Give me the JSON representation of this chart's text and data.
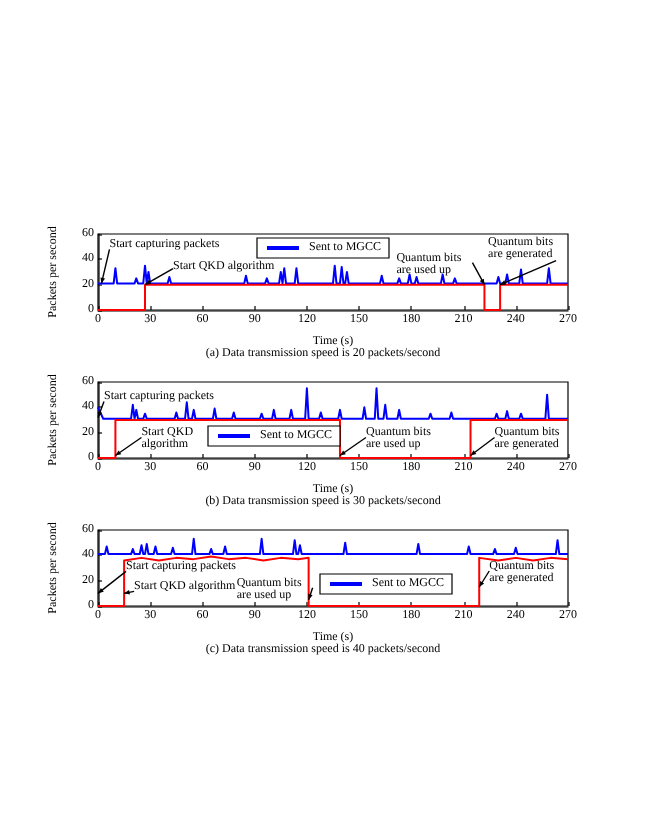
{
  "chart_data": [
    {
      "type": "line",
      "title": "(a) Data transmission speed is 20 packets/second",
      "xlabel": "Time (s)",
      "ylabel": "Packets per second",
      "xlim": [
        0,
        270
      ],
      "xticks": [
        0,
        30,
        60,
        90,
        120,
        150,
        180,
        210,
        240,
        270
      ],
      "ylim": [
        0,
        60
      ],
      "yticks": [
        0,
        20,
        40,
        60
      ],
      "grid": false,
      "legend": "top",
      "marker": "none",
      "line_style": "solid",
      "series": [
        {
          "color": "#ff0000",
          "x": [
            0,
            27,
            27,
            222,
            222,
            231,
            231,
            270
          ],
          "values": [
            0,
            0,
            20,
            20,
            0,
            0,
            20,
            20
          ]
        },
        {
          "name": "Sent to MGCC",
          "color": "#0000ff",
          "x": [
            0,
            9,
            10,
            11,
            21,
            22,
            23,
            26,
            27,
            28,
            29,
            30,
            40,
            41,
            42,
            84,
            85,
            86,
            96,
            97,
            98,
            104,
            105,
            106,
            107,
            108,
            113,
            114,
            115,
            135,
            136,
            137,
            139,
            140,
            141,
            142,
            143,
            144,
            162,
            163,
            164,
            172,
            173,
            174,
            178,
            179,
            180,
            182,
            183,
            184,
            197,
            198,
            199,
            204,
            205,
            206,
            229,
            230,
            231,
            234,
            235,
            236,
            242,
            243,
            244,
            258,
            259,
            260,
            270
          ],
          "values": [
            21,
            21,
            33,
            21,
            21,
            25,
            21,
            21,
            35,
            21,
            30,
            21,
            21,
            26,
            21,
            21,
            27,
            21,
            21,
            25,
            21,
            21,
            30,
            21,
            33,
            21,
            21,
            33,
            21,
            21,
            35,
            21,
            21,
            34,
            21,
            21,
            30,
            21,
            21,
            27,
            21,
            21,
            25,
            21,
            21,
            28,
            21,
            21,
            26,
            21,
            21,
            28,
            21,
            21,
            25,
            21,
            21,
            26,
            21,
            21,
            28,
            21,
            21,
            32,
            21,
            21,
            33,
            21,
            21
          ]
        }
      ],
      "annotations": [
        {
          "text": "Start capturing packets",
          "x": 2,
          "y": 21
        },
        {
          "text": "Start QKD algorithm",
          "x": 27,
          "y": 20
        },
        {
          "text": "Quantum bits are used up",
          "x": 222,
          "y": 20
        },
        {
          "text": "Quantum bits are generated",
          "x": 231,
          "y": 20
        }
      ]
    },
    {
      "type": "line",
      "title": "(b) Data transmission speed is 30 packets/second",
      "xlabel": "Time (s)",
      "ylabel": "Packets per second",
      "xlim": [
        0,
        270
      ],
      "xticks": [
        0,
        30,
        60,
        90,
        120,
        150,
        180,
        210,
        240,
        270
      ],
      "ylim": [
        0,
        60
      ],
      "yticks": [
        0,
        20,
        40,
        60
      ],
      "grid": false,
      "legend": "bottom",
      "marker": "none",
      "line_style": "solid",
      "series": [
        {
          "color": "#ff0000",
          "x": [
            0,
            10,
            10,
            139,
            139,
            214,
            214,
            270
          ],
          "values": [
            0,
            0,
            30,
            30,
            0,
            0,
            30,
            30
          ]
        },
        {
          "name": "Sent to MGCC",
          "color": "#0000ff",
          "x": [
            0,
            3,
            6,
            19,
            20,
            21,
            22,
            23,
            24,
            26,
            27,
            28,
            44,
            45,
            46,
            50,
            51,
            52,
            54,
            55,
            56,
            66,
            67,
            68,
            77,
            78,
            79,
            93,
            94,
            95,
            100,
            101,
            102,
            110,
            111,
            112,
            119,
            120,
            121,
            127,
            128,
            129,
            138,
            139,
            140,
            152,
            153,
            154,
            159,
            160,
            161,
            164,
            165,
            166,
            172,
            173,
            174,
            190,
            191,
            192,
            202,
            203,
            204,
            228,
            229,
            230,
            234,
            235,
            236,
            242,
            243,
            244,
            257,
            258,
            259,
            270
          ],
          "values": [
            40,
            31,
            31,
            31,
            42,
            31,
            38,
            31,
            31,
            31,
            35,
            31,
            31,
            36,
            31,
            31,
            44,
            31,
            31,
            38,
            31,
            31,
            39,
            31,
            31,
            36,
            31,
            31,
            35,
            31,
            31,
            38,
            31,
            31,
            38,
            31,
            31,
            55,
            31,
            31,
            36,
            31,
            31,
            38,
            31,
            31,
            40,
            31,
            31,
            55,
            31,
            31,
            42,
            31,
            31,
            38,
            31,
            31,
            35,
            31,
            31,
            36,
            31,
            31,
            35,
            31,
            31,
            37,
            31,
            31,
            35,
            31,
            31,
            50,
            31,
            31
          ]
        }
      ],
      "annotations": [
        {
          "text": "Start capturing packets",
          "x": 0,
          "y": 32
        },
        {
          "text": "Start QKD algorithm",
          "x": 10,
          "y": 2
        },
        {
          "text": "Quantum bits are used up",
          "x": 139,
          "y": 2
        },
        {
          "text": "Quantum bits are generated",
          "x": 214,
          "y": 2
        }
      ]
    },
    {
      "type": "line",
      "title": "(c) Data transmission speed is 40 packets/second",
      "xlabel": "Time (s)",
      "ylabel": "Packets per second",
      "xlim": [
        0,
        270
      ],
      "xticks": [
        0,
        30,
        60,
        90,
        120,
        150,
        180,
        210,
        240,
        270
      ],
      "ylim": [
        0,
        60
      ],
      "yticks": [
        0,
        20,
        40,
        60
      ],
      "grid": false,
      "legend": "bottom right",
      "marker": "none",
      "line_style": "solid",
      "series": [
        {
          "color": "#ff0000",
          "x": [
            0,
            15,
            15,
            25,
            35,
            45,
            55,
            65,
            75,
            85,
            95,
            105,
            115,
            121,
            121,
            219,
            219,
            230,
            240,
            250,
            260,
            270
          ],
          "values": [
            0,
            0,
            36,
            38,
            36,
            38,
            37,
            39,
            37,
            38,
            36,
            38,
            37,
            38,
            0,
            0,
            38,
            36,
            38,
            36,
            38,
            37
          ]
        },
        {
          "name": "Sent to MGCC",
          "color": "#0000ff",
          "x": [
            0,
            4,
            5,
            6,
            19,
            20,
            21,
            24,
            25,
            26,
            27,
            28,
            29,
            32,
            33,
            34,
            42,
            43,
            44,
            54,
            55,
            56,
            64,
            65,
            66,
            72,
            73,
            74,
            93,
            94,
            95,
            112,
            113,
            114,
            115,
            116,
            117,
            141,
            142,
            143,
            183,
            184,
            185,
            212,
            213,
            214,
            227,
            228,
            229,
            239,
            240,
            241,
            263,
            264,
            265,
            270
          ],
          "values": [
            41,
            41,
            47,
            41,
            41,
            45,
            41,
            41,
            48,
            41,
            41,
            49,
            41,
            41,
            47,
            41,
            41,
            46,
            41,
            41,
            53,
            41,
            41,
            45,
            41,
            41,
            47,
            41,
            41,
            53,
            41,
            41,
            52,
            41,
            41,
            48,
            41,
            41,
            50,
            41,
            41,
            49,
            41,
            41,
            47,
            41,
            41,
            45,
            41,
            41,
            46,
            41,
            41,
            52,
            41,
            41
          ]
        }
      ],
      "annotations": [
        {
          "text": "Start capturing packets",
          "x": 0,
          "y": 10
        },
        {
          "text": "Start QKD algorithm",
          "x": 15,
          "y": 10
        },
        {
          "text": "Quantum bits are used up",
          "x": 121,
          "y": 5
        },
        {
          "text": "Quantum bits are generated",
          "x": 219,
          "y": 15
        }
      ]
    }
  ]
}
